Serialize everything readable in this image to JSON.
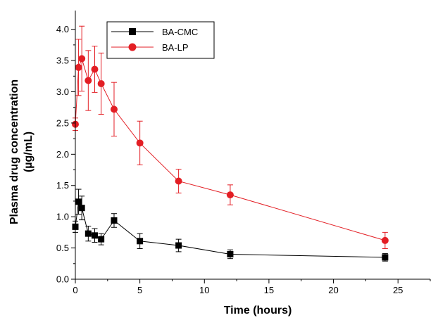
{
  "chart_data": {
    "type": "line",
    "xlabel": "Time (hours)",
    "ylabel_line1": "Plasma drug concentration",
    "ylabel_line2": "(µg/mL)",
    "xlim": [
      0,
      27.5
    ],
    "ylim": [
      0,
      4.3
    ],
    "x_ticks": [
      0,
      5,
      10,
      15,
      20,
      25
    ],
    "x_tick_labels": [
      "0",
      "5",
      "10",
      "15",
      "20",
      "25"
    ],
    "y_ticks": [
      0,
      0.5,
      1.0,
      1.5,
      2.0,
      2.5,
      3.0,
      3.5,
      4.0
    ],
    "y_tick_labels": [
      "0.0",
      "0.5",
      "1.0",
      "1.5",
      "2.0",
      "2.5",
      "3.0",
      "3.5",
      "4.0"
    ],
    "grid": false,
    "legend_position": "top-left",
    "series": [
      {
        "name": "BA-CMC",
        "color": "#000000",
        "marker": "square",
        "x": [
          0,
          0.25,
          0.5,
          1,
          1.5,
          2,
          3,
          5,
          8,
          12,
          24
        ],
        "y": [
          0.84,
          1.24,
          1.14,
          0.73,
          0.7,
          0.64,
          0.94,
          0.61,
          0.54,
          0.4,
          0.35
        ],
        "err": [
          0.09,
          0.2,
          0.19,
          0.12,
          0.11,
          0.09,
          0.11,
          0.12,
          0.1,
          0.07,
          0.06
        ]
      },
      {
        "name": "BA-LP",
        "color": "#e31e24",
        "marker": "circle",
        "x": [
          0,
          0.25,
          0.5,
          1,
          1.5,
          2,
          3,
          5,
          8,
          12,
          24
        ],
        "y": [
          2.48,
          3.39,
          3.53,
          3.18,
          3.36,
          3.13,
          2.72,
          2.18,
          1.57,
          1.35,
          0.62
        ],
        "err": [
          0.1,
          0.45,
          0.52,
          0.48,
          0.37,
          0.49,
          0.43,
          0.35,
          0.19,
          0.16,
          0.13
        ]
      }
    ]
  }
}
